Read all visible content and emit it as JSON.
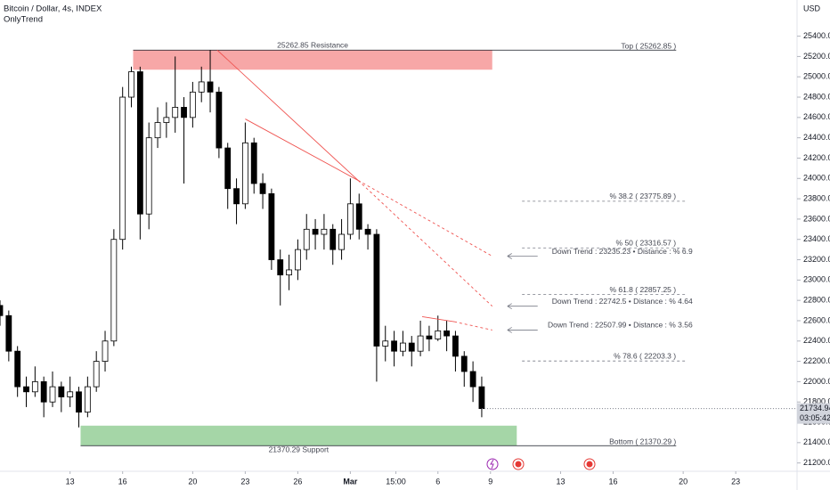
{
  "chart_data": {
    "type": "candlestick",
    "title": "Bitcoin / Dollar, 4s, INDEX",
    "subtitle": "OnlyTrend",
    "y_unit": "USD",
    "up_color": "#ffffff",
    "down_color": "#000000",
    "grid": false,
    "xlim": [
      9,
      54.5
    ],
    "xticks": [
      {
        "value": 13,
        "label": "13"
      },
      {
        "value": 16,
        "label": "16"
      },
      {
        "value": 20,
        "label": "20"
      },
      {
        "value": 23,
        "label": "23"
      },
      {
        "value": 26,
        "label": "26"
      },
      {
        "value": 29,
        "label": "Mar"
      },
      {
        "value": 31.6,
        "label": "15:00"
      },
      {
        "value": 34,
        "label": "6"
      },
      {
        "value": 37,
        "label": "9"
      },
      {
        "value": 41,
        "label": "13"
      },
      {
        "value": 44,
        "label": "16"
      },
      {
        "value": 48,
        "label": "20"
      },
      {
        "value": 51,
        "label": "23"
      }
    ],
    "ylim": [
      21118,
      25528
    ],
    "yticks": [
      {
        "value": 21200,
        "label": "21200.00"
      },
      {
        "value": 21400,
        "label": "21400.00"
      },
      {
        "value": 21600,
        "label": "21600.00"
      },
      {
        "value": 21800,
        "label": "21800.00"
      },
      {
        "value": 22000,
        "label": "22000.00"
      },
      {
        "value": 22200,
        "label": "22200.00"
      },
      {
        "value": 22400,
        "label": "22400.00"
      },
      {
        "value": 22600,
        "label": "22600.00"
      },
      {
        "value": 22800,
        "label": "22800.00"
      },
      {
        "value": 23000,
        "label": "23000.00"
      },
      {
        "value": 23200,
        "label": "23200.00"
      },
      {
        "value": 23400,
        "label": "23400.00"
      },
      {
        "value": 23600,
        "label": "23600.00"
      },
      {
        "value": 23800,
        "label": "23800.00"
      },
      {
        "value": 24000,
        "label": "24000.00"
      },
      {
        "value": 24200,
        "label": "24200.00"
      },
      {
        "value": 24400,
        "label": "24400.00"
      },
      {
        "value": 24600,
        "label": "24600.00"
      },
      {
        "value": 24800,
        "label": "24800.00"
      },
      {
        "value": 25000,
        "label": "25000.00"
      },
      {
        "value": 25200,
        "label": "25200.00"
      },
      {
        "value": 25400,
        "label": "25400.00"
      }
    ],
    "x": [
      9,
      9.5,
      10,
      10.5,
      11,
      11.5,
      12,
      12.5,
      13,
      13.5,
      14,
      14.5,
      15,
      15.5,
      16,
      16.5,
      17,
      17.5,
      18,
      18.5,
      19,
      19.5,
      20,
      20.5,
      21,
      21.5,
      22,
      22.5,
      23,
      23.5,
      24,
      24.5,
      25,
      25.5,
      26,
      26.5,
      27,
      27.5,
      28,
      28.5,
      29,
      29.5,
      30,
      30.5,
      31,
      31.5,
      32,
      32.5,
      33,
      33.5,
      34,
      34.5,
      35,
      35.5,
      36,
      36.5
    ],
    "open": [
      22750,
      22650,
      22300,
      21950,
      21900,
      22000,
      21800,
      21950,
      21850,
      21900,
      21700,
      21950,
      22200,
      22400,
      23400,
      24800,
      25050,
      23650,
      24400,
      24550,
      24600,
      24700,
      24600,
      24850,
      24950,
      24850,
      24300,
      23900,
      23750,
      24350,
      23950,
      23850,
      23200,
      23050,
      23100,
      23300,
      23500,
      23450,
      23500,
      23300,
      23450,
      23750,
      23500,
      23450,
      22350,
      22400,
      22300,
      22380,
      22300,
      22450,
      22420,
      22500,
      22450,
      22250,
      22100,
      21950
    ],
    "high": [
      22800,
      22700,
      22350,
      22050,
      22150,
      22050,
      22100,
      22000,
      22050,
      21950,
      22050,
      22300,
      22500,
      23500,
      24900,
      25100,
      25100,
      24550,
      24700,
      24750,
      25200,
      24800,
      24950,
      25100,
      25262.85,
      24900,
      24350,
      24000,
      24550,
      24400,
      24050,
      23900,
      23300,
      23250,
      23400,
      23650,
      23600,
      23650,
      23550,
      23600,
      24000,
      23850,
      23550,
      23500,
      22550,
      22500,
      22500,
      22450,
      22600,
      22550,
      22650,
      22600,
      22500,
      22300,
      22200,
      22050
    ],
    "low": [
      22550,
      22200,
      21850,
      21750,
      21850,
      21650,
      21750,
      21700,
      21750,
      21550,
      21650,
      21900,
      22100,
      22350,
      23300,
      24700,
      23400,
      23500,
      24300,
      24400,
      24450,
      23950,
      24500,
      24750,
      24650,
      24200,
      23700,
      23550,
      23700,
      23850,
      23700,
      23100,
      22750,
      22900,
      23000,
      23200,
      23300,
      23300,
      23150,
      23200,
      23400,
      23400,
      23300,
      22000,
      22200,
      22150,
      22250,
      22150,
      22250,
      22300,
      22400,
      22300,
      22100,
      21950,
      21800,
      21650
    ],
    "close": [
      22650,
      22300,
      21950,
      21900,
      22000,
      21800,
      21950,
      21850,
      21900,
      21700,
      21950,
      22200,
      22400,
      23400,
      24800,
      25050,
      23650,
      24400,
      24550,
      24600,
      24700,
      24600,
      24850,
      24950,
      24850,
      24300,
      23900,
      23750,
      24350,
      23950,
      23850,
      23200,
      23050,
      23100,
      23300,
      23500,
      23450,
      23500,
      23300,
      23450,
      23750,
      23500,
      23450,
      22350,
      22400,
      22300,
      22380,
      22300,
      22450,
      22420,
      22500,
      22450,
      22250,
      22100,
      21950,
      21735
    ],
    "last_price": 21734.94,
    "countdown": "03:05:42",
    "resistance": {
      "label": "25262.85 Resistance",
      "side_label": "Top ( 25262.85 )",
      "value": 25262.85,
      "zone_low": 25070,
      "x": [
        16.6,
        37.1
      ],
      "line_end": 47.6,
      "color": "#f7a7a7"
    },
    "support": {
      "label": "21370.29 Support",
      "side_label": "Bottom ( 21370.29 )",
      "value": 21370.29,
      "zone_high": 21567,
      "x": [
        13.6,
        38.5
      ],
      "line_end": 47.6,
      "color": "#a5d6a7"
    },
    "fib_x": [
      38.8,
      48.1
    ],
    "fib_levels": [
      {
        "label": "% 38.2 ( 23775.89 )",
        "value": 23775.89
      },
      {
        "label": "% 50 ( 23316.57 )",
        "value": 23316.57
      },
      {
        "label": "% 61.8 ( 22857.25 )",
        "value": 22857.25
      },
      {
        "label": "% 78.6 ( 22203.3 )",
        "value": 22203.3
      }
    ],
    "trend_color": "#ef5350",
    "trends": [
      {
        "label": "Down Trend : 23235.23 • Distance : % 6.9",
        "x": [
          21.4,
          29.45,
          37.1
        ],
        "y": [
          25262.85,
          23980,
          23235.23
        ]
      },
      {
        "label": "Down Trend : 22742.5 • Distance : % 4.64",
        "x": [
          23.0,
          29.45,
          37.1
        ],
        "y": [
          24585,
          23980,
          22742.5
        ]
      },
      {
        "label": "Down Trend : 22507.99 • Distance : % 3.56",
        "x": [
          33.1,
          34.93,
          37.1
        ],
        "y": [
          22640,
          22590,
          22507.99
        ]
      }
    ]
  }
}
